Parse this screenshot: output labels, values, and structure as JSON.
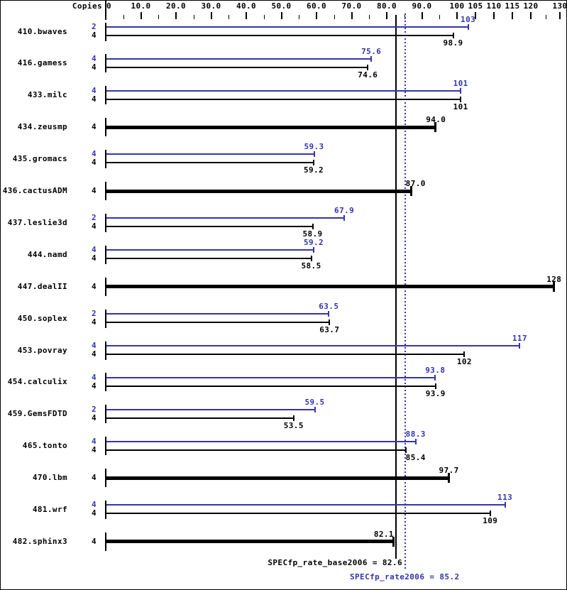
{
  "header": {
    "copies_label": "Copies"
  },
  "axis": {
    "labeled_ticks": [
      {
        "value": 0,
        "label": "0"
      },
      {
        "value": 10,
        "label": "10.0"
      },
      {
        "value": 20,
        "label": "20.0"
      },
      {
        "value": 30,
        "label": "30.0"
      },
      {
        "value": 40,
        "label": "40.0"
      },
      {
        "value": 50,
        "label": "50.0"
      },
      {
        "value": 60,
        "label": "60.0"
      },
      {
        "value": 70,
        "label": "70.0"
      },
      {
        "value": 80,
        "label": "80.0"
      },
      {
        "value": 90,
        "label": "90.0"
      },
      {
        "value": 100,
        "label": "100"
      },
      {
        "value": 105,
        "label": "105"
      },
      {
        "value": 110,
        "label": "110"
      },
      {
        "value": 115,
        "label": "115"
      },
      {
        "value": 120,
        "label": "120"
      },
      {
        "value": 130,
        "label": "130"
      }
    ],
    "minor_ticks": [
      5,
      15,
      25,
      35,
      45,
      55,
      65,
      75,
      85,
      95,
      125
    ]
  },
  "chart_data": {
    "type": "bar",
    "orientation": "horizontal",
    "xlim": [
      0,
      130
    ],
    "x_scale_breaks": [
      100,
      120
    ],
    "series_colors": {
      "peak": "#3434b0",
      "base": "#000000"
    },
    "benchmarks": [
      {
        "name": "410.bwaves",
        "bars": [
          {
            "series": "peak",
            "copies": 2,
            "value": 103,
            "label": "103"
          },
          {
            "series": "base",
            "copies": 4,
            "value": 98.9,
            "label": "98.9"
          }
        ]
      },
      {
        "name": "416.gamess",
        "bars": [
          {
            "series": "peak",
            "copies": 4,
            "value": 75.6,
            "label": "75.6"
          },
          {
            "series": "base",
            "copies": 4,
            "value": 74.6,
            "label": "74.6"
          }
        ]
      },
      {
        "name": "433.milc",
        "bars": [
          {
            "series": "peak",
            "copies": 4,
            "value": 101,
            "label": "101"
          },
          {
            "series": "base",
            "copies": 4,
            "value": 101,
            "label": "101"
          }
        ]
      },
      {
        "name": "434.zeusmp",
        "bars": [
          {
            "series": "base",
            "copies": 4,
            "value": 94.0,
            "label": "94.0"
          }
        ]
      },
      {
        "name": "435.gromacs",
        "bars": [
          {
            "series": "peak",
            "copies": 4,
            "value": 59.3,
            "label": "59.3"
          },
          {
            "series": "base",
            "copies": 4,
            "value": 59.2,
            "label": "59.2"
          }
        ]
      },
      {
        "name": "436.cactusADM",
        "bars": [
          {
            "series": "base",
            "copies": 4,
            "value": 87.0,
            "label": "87.0"
          }
        ]
      },
      {
        "name": "437.leslie3d",
        "bars": [
          {
            "series": "peak",
            "copies": 2,
            "value": 67.9,
            "label": "67.9"
          },
          {
            "series": "base",
            "copies": 4,
            "value": 58.9,
            "label": "58.9"
          }
        ]
      },
      {
        "name": "444.namd",
        "bars": [
          {
            "series": "peak",
            "copies": 4,
            "value": 59.2,
            "label": "59.2"
          },
          {
            "series": "base",
            "copies": 4,
            "value": 58.5,
            "label": "58.5"
          }
        ]
      },
      {
        "name": "447.dealII",
        "bars": [
          {
            "series": "base",
            "copies": 4,
            "value": 128,
            "label": "128"
          }
        ]
      },
      {
        "name": "450.soplex",
        "bars": [
          {
            "series": "peak",
            "copies": 2,
            "value": 63.5,
            "label": "63.5"
          },
          {
            "series": "base",
            "copies": 4,
            "value": 63.7,
            "label": "63.7"
          }
        ]
      },
      {
        "name": "453.povray",
        "bars": [
          {
            "series": "peak",
            "copies": 4,
            "value": 117,
            "label": "117"
          },
          {
            "series": "base",
            "copies": 4,
            "value": 102,
            "label": "102"
          }
        ]
      },
      {
        "name": "454.calculix",
        "bars": [
          {
            "series": "peak",
            "copies": 4,
            "value": 93.8,
            "label": "93.8"
          },
          {
            "series": "base",
            "copies": 4,
            "value": 93.9,
            "label": "93.9"
          }
        ]
      },
      {
        "name": "459.GemsFDTD",
        "bars": [
          {
            "series": "peak",
            "copies": 2,
            "value": 59.5,
            "label": "59.5"
          },
          {
            "series": "base",
            "copies": 4,
            "value": 53.5,
            "label": "53.5"
          }
        ]
      },
      {
        "name": "465.tonto",
        "bars": [
          {
            "series": "peak",
            "copies": 4,
            "value": 88.3,
            "label": "88.3"
          },
          {
            "series": "base",
            "copies": 4,
            "value": 85.4,
            "label": "85.4"
          }
        ]
      },
      {
        "name": "470.lbm",
        "bars": [
          {
            "series": "base",
            "copies": 4,
            "value": 97.7,
            "label": "97.7"
          }
        ]
      },
      {
        "name": "481.wrf",
        "bars": [
          {
            "series": "peak",
            "copies": 4,
            "value": 113,
            "label": "113"
          },
          {
            "series": "base",
            "copies": 4,
            "value": 109,
            "label": "109"
          }
        ]
      },
      {
        "name": "482.sphinx3",
        "bars": [
          {
            "series": "base",
            "copies": 4,
            "value": 82.1,
            "label": "82.1"
          }
        ]
      }
    ],
    "reference_lines": [
      {
        "name": "SPECfp_rate_base2006",
        "value": 82.6,
        "style": "solid",
        "color": "#000000"
      },
      {
        "name": "SPECfp_rate2006",
        "value": 85.2,
        "style": "dotted",
        "color": "#3434b0"
      }
    ]
  },
  "footer": {
    "base_text": "SPECfp_rate_base2006 = 82.6",
    "peak_text": "SPECfp_rate2006 = 85.2"
  }
}
